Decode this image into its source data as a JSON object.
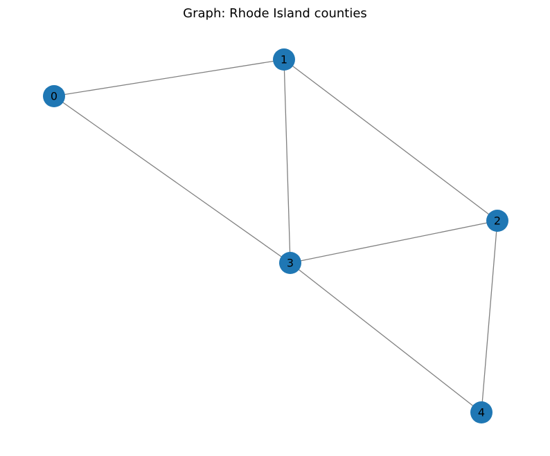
{
  "title": "Graph: Rhode Island counties",
  "colors": {
    "node_fill": "#1f77b4",
    "edge_stroke": "#808080",
    "label_text": "#000000",
    "background": "#ffffff"
  },
  "nodes": [
    {
      "id": 0,
      "label": "0"
    },
    {
      "id": 1,
      "label": "1"
    },
    {
      "id": 2,
      "label": "2"
    },
    {
      "id": 3,
      "label": "3"
    },
    {
      "id": 4,
      "label": "4"
    }
  ],
  "edges": [
    {
      "source": 0,
      "target": 1
    },
    {
      "source": 0,
      "target": 3
    },
    {
      "source": 1,
      "target": 2
    },
    {
      "source": 1,
      "target": 3
    },
    {
      "source": 2,
      "target": 3
    },
    {
      "source": 2,
      "target": 4
    },
    {
      "source": 3,
      "target": 4
    }
  ]
}
